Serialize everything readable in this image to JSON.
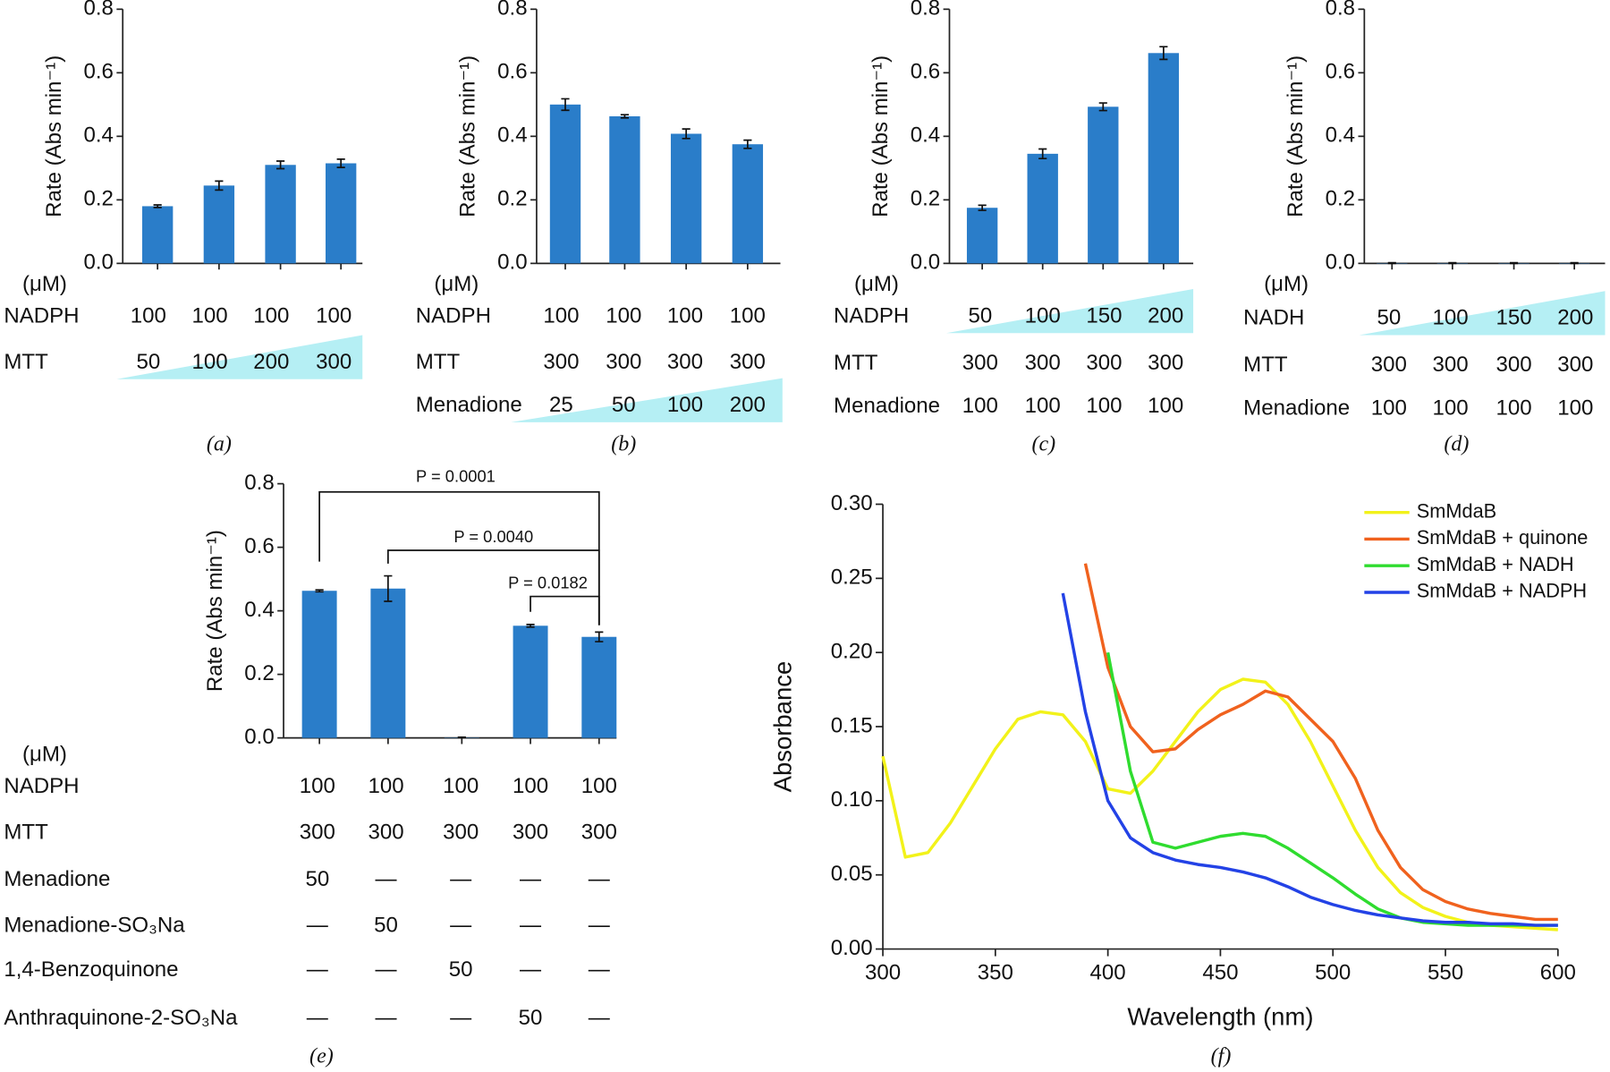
{
  "chart_data": [
    {
      "type": "bar",
      "caption": "(a)",
      "ylabel": "Rate (Abs min⁻¹)",
      "color": "#2a7dc9",
      "categories": [
        null,
        null,
        null,
        null
      ],
      "values": [
        0.18,
        0.245,
        0.31,
        0.315
      ],
      "errors": [
        0.004,
        0.014,
        0.012,
        0.013
      ],
      "ylim": [
        0,
        0.8
      ],
      "yticks": [
        {
          "value": 0,
          "label": "0.0"
        },
        0.2,
        0.4,
        0.6,
        0.8
      ],
      "table": {
        "unit": "(μM)",
        "rows": [
          {
            "name": "NADPH",
            "values": [
              100,
              100,
              100,
              100
            ]
          },
          {
            "name": "MTT",
            "values": [
              50,
              100,
              200,
              300
            ],
            "ramp": true
          }
        ]
      }
    },
    {
      "type": "bar",
      "caption": "(b)",
      "ylabel": "Rate (Abs min⁻¹)",
      "color": "#2a7dc9",
      "categories": [
        null,
        null,
        null,
        null
      ],
      "values": [
        0.5,
        0.463,
        0.408,
        0.375
      ],
      "errors": [
        0.018,
        0.005,
        0.015,
        0.013
      ],
      "ylim": [
        0,
        0.8
      ],
      "yticks": [
        {
          "value": 0,
          "label": "0.0"
        },
        0.2,
        0.4,
        0.6,
        0.8
      ],
      "table": {
        "unit": "(μM)",
        "rows": [
          {
            "name": "NADPH",
            "values": [
              100,
              100,
              100,
              100
            ]
          },
          {
            "name": "MTT",
            "values": [
              300,
              300,
              300,
              300
            ]
          },
          {
            "name": "Menadione",
            "values": [
              25,
              50,
              100,
              200
            ],
            "ramp": true
          }
        ]
      }
    },
    {
      "type": "bar",
      "caption": "(c)",
      "ylabel": "Rate (Abs min⁻¹)",
      "color": "#2a7dc9",
      "categories": [
        null,
        null,
        null,
        null
      ],
      "values": [
        0.175,
        0.345,
        0.493,
        0.662
      ],
      "errors": [
        0.008,
        0.015,
        0.012,
        0.02
      ],
      "ylim": [
        0,
        0.8
      ],
      "yticks": [
        {
          "value": 0,
          "label": "0.0"
        },
        0.2,
        0.4,
        0.6,
        0.8
      ],
      "table": {
        "unit": "(μM)",
        "rows": [
          {
            "name": "NADPH",
            "values": [
              50,
              100,
              150,
              200
            ],
            "ramp": true
          },
          {
            "name": "MTT",
            "values": [
              300,
              300,
              300,
              300
            ]
          },
          {
            "name": "Menadione",
            "values": [
              100,
              100,
              100,
              100
            ]
          }
        ]
      }
    },
    {
      "type": "bar",
      "caption": "(d)",
      "ylabel": "Rate (Abs min⁻¹)",
      "color": "#2a7dc9",
      "categories": [
        null,
        null,
        null,
        null
      ],
      "values": [
        0.001,
        0.001,
        0.001,
        0.001
      ],
      "errors": [
        0.001,
        0.001,
        0.001,
        0.001
      ],
      "ylim": [
        0,
        0.8
      ],
      "yticks": [
        {
          "value": 0,
          "label": "0.0"
        },
        0.2,
        0.4,
        0.6,
        0.8
      ],
      "table": {
        "unit": "(μM)",
        "rows": [
          {
            "name": "NADH",
            "values": [
              50,
              100,
              150,
              200
            ],
            "ramp": true
          },
          {
            "name": "MTT",
            "values": [
              300,
              300,
              300,
              300
            ]
          },
          {
            "name": "Menadione",
            "values": [
              100,
              100,
              100,
              100
            ]
          }
        ]
      }
    },
    {
      "type": "bar",
      "caption": "(e)",
      "ylabel": "Rate (Abs min⁻¹)",
      "color": "#2a7dc9",
      "categories": [
        null,
        null,
        null,
        null,
        null
      ],
      "values": [
        0.463,
        0.47,
        0.001,
        0.353,
        0.318
      ],
      "errors": [
        0.003,
        0.04,
        0.001,
        0.004,
        0.015
      ],
      "ylim": [
        0,
        0.8
      ],
      "yticks": [
        {
          "value": 0,
          "label": "0.0"
        },
        0.2,
        0.4,
        0.6,
        0.8
      ],
      "annotations": [
        "P = 0.0001",
        "P = 0.0040",
        "P = 0.0182"
      ],
      "table": {
        "unit": "(μM)",
        "rows": [
          {
            "name": "NADPH",
            "values": [
              100,
              100,
              100,
              100,
              100
            ]
          },
          {
            "name": "MTT",
            "values": [
              300,
              300,
              300,
              300,
              300
            ]
          },
          {
            "name": "Menadione",
            "values": [
              50,
              "—",
              "—",
              "—",
              "—"
            ]
          },
          {
            "name": "Menadione-SO₃Na",
            "values": [
              "—",
              50,
              "—",
              "—",
              "—"
            ]
          },
          {
            "name": "1,4-Benzoquinone",
            "values": [
              "—",
              "—",
              50,
              "—",
              "—"
            ]
          },
          {
            "name": "Anthraquinone-2-SO₃Na",
            "values": [
              "—",
              "—",
              "—",
              50,
              "—"
            ]
          }
        ]
      }
    },
    {
      "type": "line",
      "caption": "(f)",
      "xlabel": "Wavelength (nm)",
      "ylabel": "Absorbance",
      "legend": "top-right",
      "x": [
        300,
        310,
        320,
        330,
        340,
        350,
        360,
        370,
        380,
        390,
        400,
        410,
        420,
        430,
        440,
        450,
        460,
        470,
        480,
        490,
        500,
        510,
        520,
        530,
        540,
        550,
        560,
        570,
        580,
        590,
        600
      ],
      "series": [
        {
          "name": "SmMdaB",
          "color": "#f2f21a",
          "values": [
            0.13,
            0.062,
            0.065,
            0.085,
            0.11,
            0.135,
            0.155,
            0.16,
            0.158,
            0.14,
            0.108,
            0.105,
            0.12,
            0.14,
            0.16,
            0.175,
            0.182,
            0.18,
            0.165,
            0.14,
            0.11,
            0.08,
            0.055,
            0.038,
            0.028,
            0.022,
            0.018,
            0.016,
            0.015,
            0.014,
            0.013
          ]
        },
        {
          "name": "SmMdaB + quinone",
          "color": "#f0621e",
          "values": [
            null,
            null,
            null,
            null,
            null,
            null,
            null,
            null,
            null,
            0.26,
            0.19,
            0.15,
            0.133,
            0.135,
            0.148,
            0.158,
            0.165,
            0.174,
            0.17,
            0.155,
            0.14,
            0.115,
            0.08,
            0.055,
            0.04,
            0.032,
            0.027,
            0.024,
            0.022,
            0.02,
            0.02
          ]
        },
        {
          "name": "SmMdaB + NADH",
          "color": "#2fdc2f",
          "values": [
            null,
            null,
            null,
            null,
            null,
            null,
            null,
            null,
            null,
            null,
            0.2,
            0.12,
            0.072,
            0.068,
            0.072,
            0.076,
            0.078,
            0.076,
            0.068,
            0.058,
            0.048,
            0.037,
            0.027,
            0.021,
            0.018,
            0.017,
            0.016,
            0.016,
            0.016,
            0.016,
            0.016
          ]
        },
        {
          "name": "SmMdaB + NADPH",
          "color": "#2342e6",
          "values": [
            null,
            null,
            null,
            null,
            null,
            null,
            null,
            null,
            0.24,
            0.16,
            0.1,
            0.075,
            0.065,
            0.06,
            0.057,
            0.055,
            0.052,
            0.048,
            0.042,
            0.035,
            0.03,
            0.026,
            0.023,
            0.021,
            0.019,
            0.018,
            0.018,
            0.017,
            0.017,
            0.016,
            0.016
          ]
        }
      ],
      "xlim": [
        300,
        600
      ],
      "xticks": [
        300,
        350,
        400,
        450,
        500,
        550,
        600
      ],
      "ylim": [
        0,
        0.3
      ],
      "yticks": [
        {
          "value": 0,
          "label": "0.00"
        },
        {
          "value": 0.05,
          "label": "0.05"
        },
        {
          "value": 0.1,
          "label": "0.10"
        },
        {
          "value": 0.15,
          "label": "0.15"
        },
        {
          "value": 0.2,
          "label": "0.20"
        },
        {
          "value": 0.25,
          "label": "0.25"
        },
        {
          "value": 0.3,
          "label": "0.30"
        }
      ]
    }
  ]
}
